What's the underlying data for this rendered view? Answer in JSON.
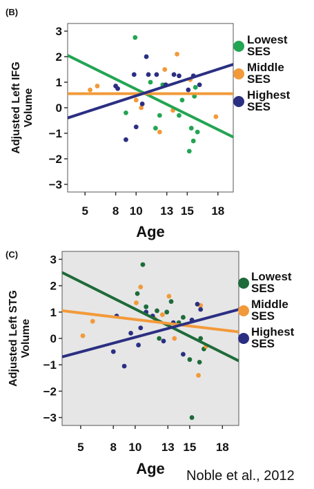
{
  "citation": "Noble et al., 2012",
  "colors": {
    "lowest": "#22a552",
    "lowest_dark": "#1e6b3a",
    "middle": "#f29a3a",
    "highest": "#2b2f82"
  },
  "chart_data": [
    {
      "panel": "(B)",
      "type": "scatter",
      "xlabel": "Age",
      "ylabel_lines": [
        "Adjusted Left IFG",
        "Volume"
      ],
      "xticks": [
        5,
        8,
        10,
        13,
        15,
        18
      ],
      "yticks": [
        3,
        2,
        1,
        0,
        -1,
        -2,
        -3
      ],
      "xlim": [
        3.3,
        19.5
      ],
      "ylim": [
        -3.3,
        3.3
      ],
      "grid": false,
      "background": "#ffffff",
      "legend": [
        {
          "key": "lowest",
          "lines": [
            "Lowest",
            "SES"
          ],
          "color": "#22a552"
        },
        {
          "key": "middle",
          "lines": [
            "Middle",
            "SES"
          ],
          "color": "#f29a3a"
        },
        {
          "key": "highest",
          "lines": [
            "Highest",
            "SES"
          ],
          "color": "#2b2f82"
        }
      ],
      "series": [
        {
          "name": "Lowest SES",
          "color": "#22a552",
          "x": [
            9.9,
            9.0,
            12.3,
            11.4,
            11.9,
            12.6,
            14.5,
            14.2,
            15.2,
            15.4,
            15.6,
            15.7,
            16.0,
            15.8
          ],
          "y": [
            2.75,
            -0.2,
            -0.3,
            1.0,
            -0.8,
            0.9,
            0.3,
            -0.3,
            -1.7,
            -0.8,
            -1.3,
            0.45,
            -0.95,
            0.8
          ],
          "fit": [
            [
              3.3,
              2.05
            ],
            [
              19.5,
              -1.15
            ]
          ]
        },
        {
          "name": "Middle SES",
          "color": "#f29a3a",
          "x": [
            5.5,
            6.2,
            10.0,
            10.5,
            12.3,
            12.8,
            13.6,
            14.0,
            15.3,
            17.8
          ],
          "y": [
            0.7,
            0.85,
            0.3,
            0.0,
            -0.95,
            1.5,
            -0.1,
            2.1,
            1.1,
            -0.35
          ],
          "fit": [
            [
              3.3,
              0.55
            ],
            [
              19.5,
              0.55
            ]
          ]
        },
        {
          "name": "Highest SES",
          "color": "#2b2f82",
          "x": [
            8.0,
            8.2,
            9.0,
            9.8,
            10.0,
            10.6,
            11.0,
            11.2,
            12.0,
            12.9,
            13.7,
            14.2,
            15.1,
            15.6,
            16.2
          ],
          "y": [
            0.85,
            0.75,
            -1.25,
            1.3,
            -0.75,
            0.15,
            2.0,
            1.3,
            1.3,
            0.9,
            1.3,
            1.25,
            0.7,
            1.25,
            0.9
          ],
          "fit": [
            [
              3.3,
              -0.4
            ],
            [
              19.5,
              1.7
            ]
          ]
        }
      ]
    },
    {
      "panel": "(C)",
      "type": "scatter",
      "xlabel": "Age",
      "ylabel_lines": [
        "Adjusted Left STG",
        "Volume"
      ],
      "xticks": [
        5,
        8,
        10,
        13,
        15,
        18
      ],
      "yticks": [
        3,
        2,
        1,
        0,
        -1,
        -2,
        -3
      ],
      "xlim": [
        3.3,
        19.5
      ],
      "ylim": [
        -3.3,
        3.3
      ],
      "grid": false,
      "background": "#e6e6e6",
      "legend": [
        {
          "key": "lowest",
          "lines": [
            "Lowest",
            "SES"
          ],
          "color": "#1e6b3a"
        },
        {
          "key": "middle",
          "lines": [
            "Middle",
            "SES"
          ],
          "color": "#f29a3a"
        },
        {
          "key": "highest",
          "lines": [
            "Highest",
            "SES"
          ],
          "color": "#2b2f82"
        }
      ],
      "series": [
        {
          "name": "Lowest SES",
          "color": "#1e6b3a",
          "x": [
            10.7,
            10.2,
            11.0,
            12.2,
            12.9,
            13.3,
            14.4,
            15.0,
            15.2,
            15.9,
            16.3,
            16.0,
            14.0,
            12.0
          ],
          "y": [
            2.8,
            1.7,
            1.2,
            0.0,
            1.0,
            1.4,
            0.8,
            -0.8,
            -3.0,
            -0.9,
            -0.4,
            0.0,
            0.6,
            1.05
          ],
          "fit": [
            [
              3.3,
              2.5
            ],
            [
              19.5,
              -0.85
            ]
          ]
        },
        {
          "name": "Middle SES",
          "color": "#f29a3a",
          "x": [
            5.2,
            6.1,
            10.1,
            10.5,
            11.8,
            12.5,
            13.1,
            13.6,
            15.8,
            16.0,
            16.5
          ],
          "y": [
            0.1,
            0.65,
            1.35,
            1.95,
            0.75,
            0.9,
            1.6,
            0.0,
            -1.4,
            1.25,
            -0.3
          ],
          "fit": [
            [
              3.3,
              1.05
            ],
            [
              19.5,
              0.25
            ]
          ]
        },
        {
          "name": "Highest SES",
          "color": "#2b2f82",
          "x": [
            8.0,
            8.3,
            9.0,
            9.6,
            10.3,
            10.5,
            11.0,
            11.6,
            12.6,
            13.5,
            14.4,
            15.2,
            15.7,
            16.0
          ],
          "y": [
            -0.5,
            0.85,
            -1.05,
            0.2,
            -0.25,
            0.4,
            1.0,
            0.85,
            -0.1,
            0.6,
            -0.6,
            0.7,
            1.3,
            1.1
          ],
          "fit": [
            [
              3.3,
              -0.7
            ],
            [
              19.5,
              1.1
            ]
          ]
        }
      ]
    }
  ]
}
